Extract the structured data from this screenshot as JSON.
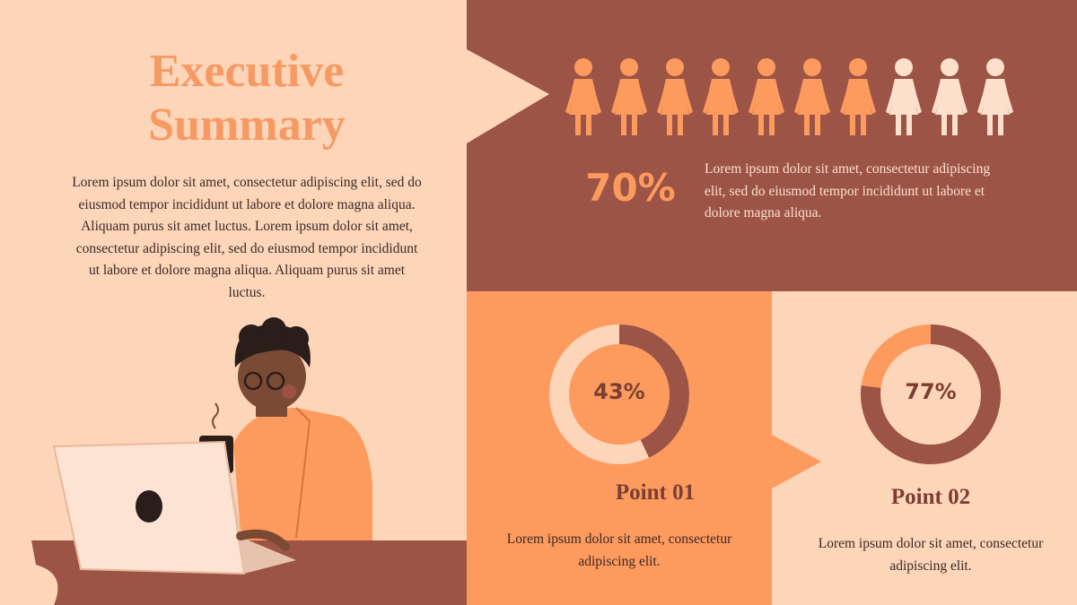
{
  "title": "Executive Summary",
  "intro": "Lorem ipsum dolor sit amet, consectetur adipiscing elit, sed do eiusmod tempor incididunt ut labore et dolore magna aliqua. Aliquam purus sit amet luctus. Lorem ipsum dolor sit amet, consectetur adipiscing elit, sed do eiusmod tempor incididunt ut labore et dolore magna aliqua. Aliquam purus sit amet luctus.",
  "stat": {
    "value": {
      "value": 70,
      "label": "70%"
    },
    "text": "Lorem ipsum dolor sit amet, consectetur adipiscing elit, sed do eiusmod tempor incididunt ut labore et dolore magna aliqua."
  },
  "points": [
    {
      "title": "Point 01",
      "value": {
        "value": 43,
        "label": "43%"
      },
      "text": "Lorem ipsum dolor sit amet, consectetur adipiscing elit."
    },
    {
      "title": "Point 02",
      "value": {
        "value": 77,
        "label": "77%"
      },
      "text": "Lorem ipsum dolor sit amet, consectetur adipiscing elit."
    }
  ]
}
